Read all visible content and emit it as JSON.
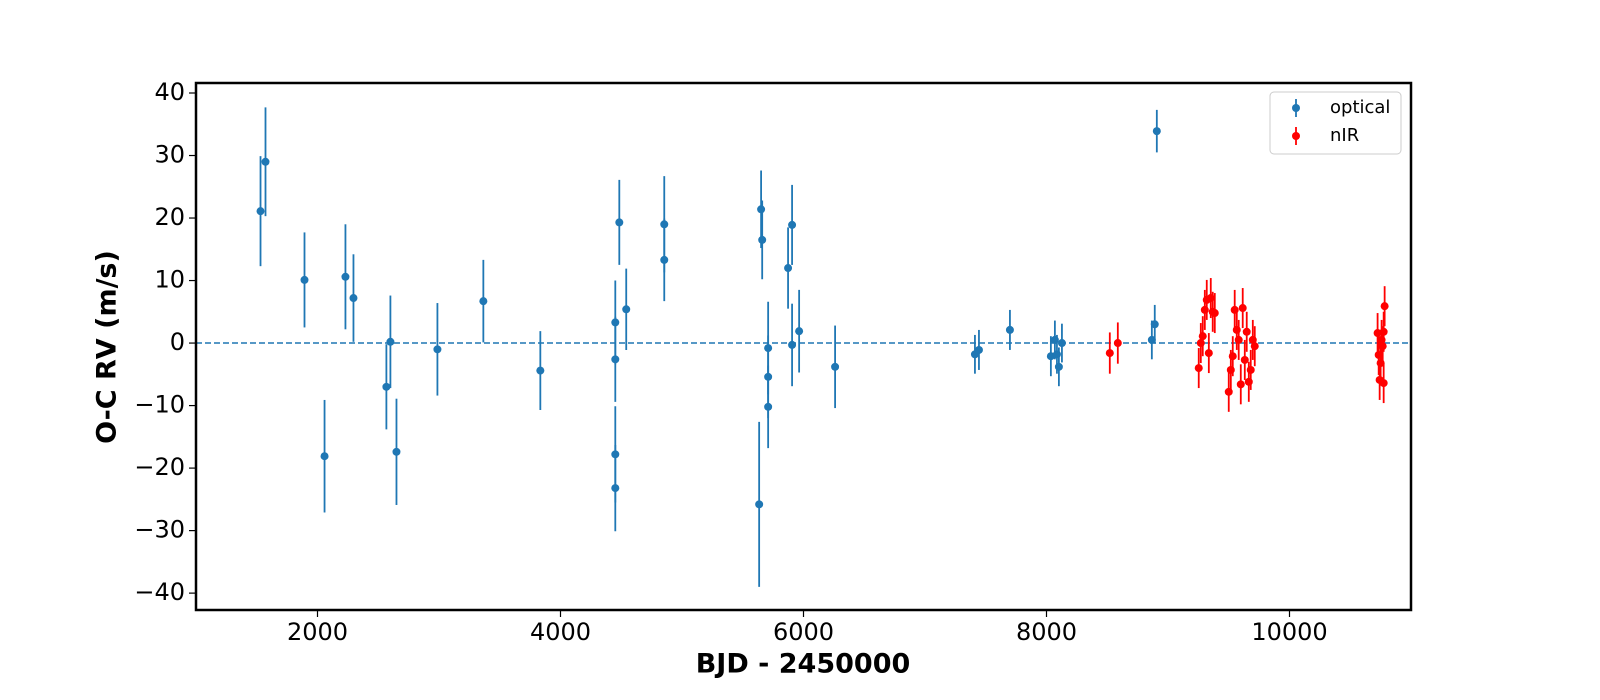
{
  "chart_data": {
    "type": "errorbar-scatter",
    "x_label": "BJD - 2450000",
    "y_label": "O-C RV (m/s)",
    "xlim": [
      1000,
      11000
    ],
    "ylim": [
      -42.7,
      41.6
    ],
    "xticks": [
      2000,
      4000,
      6000,
      8000,
      10000
    ],
    "yticks": [
      {
        "value": -40,
        "label": "−40"
      },
      {
        "value": -30,
        "label": "−30"
      },
      {
        "value": -20,
        "label": "−20"
      },
      {
        "value": -10,
        "label": "−10"
      },
      0,
      10,
      20,
      30,
      40
    ],
    "reference_line": {
      "value": 0,
      "color": "#1f77b4",
      "dashed": true
    },
    "legend": "upper right",
    "series": [
      {
        "name": "optical",
        "color": "#1f77b4",
        "x": [
          1531,
          1572,
          1893,
          2058,
          2230,
          2296,
          2567,
          2600,
          2650,
          2987,
          3365,
          3834,
          4451,
          4451,
          4451,
          4451,
          4484,
          4541,
          4854,
          4854,
          5635,
          5651,
          5660,
          5709,
          5709,
          5709,
          5873,
          5906,
          5906,
          5964,
          6260,
          7411,
          7444,
          7699,
          8036,
          8069,
          8086,
          8102,
          8127,
          8867,
          8891,
          8908
        ],
        "values": [
          21.1,
          29,
          10.1,
          -18.1,
          10.6,
          7.2,
          -7.0,
          0.2,
          -17.4,
          -1.0,
          6.7,
          -4.4,
          3.3,
          -2.6,
          -17.8,
          -23.2,
          19.3,
          5.4,
          19.0,
          13.3,
          -25.8,
          21.4,
          16.5,
          -0.8,
          -5.4,
          -10.2,
          12.0,
          18.9,
          -0.3,
          1.9,
          -3.8,
          -1.8,
          -1.1,
          2.1,
          -2.1,
          0.5,
          -1.8,
          -3.8,
          0,
          0.5,
          3.0,
          33.9
        ],
        "errors": [
          8.8,
          8.7,
          7.6,
          9,
          8.4,
          7,
          6.8,
          7.4,
          8.5,
          7.4,
          6.6,
          6.3,
          6.7,
          6.8,
          7.7,
          6.9,
          6.8,
          6.5,
          7.7,
          6.6,
          13.2,
          6.2,
          6.3,
          7.4,
          6.6,
          6.6,
          6.5,
          6.4,
          6.6,
          6.6,
          6.6,
          3.1,
          3.2,
          3.2,
          3.2,
          3.1,
          3.1,
          3.1,
          3.1,
          3.1,
          3.1,
          3.4
        ]
      },
      {
        "name": "nIR",
        "color": "#ff0000",
        "x": [
          8521,
          8587,
          9253,
          9270,
          9286,
          9303,
          9319,
          9336,
          9352,
          9368,
          9385,
          9500,
          9517,
          9533,
          9549,
          9566,
          9582,
          9599,
          9615,
          9632,
          9648,
          9665,
          9681,
          9698,
          9714,
          10725,
          10734,
          10742,
          10750,
          10758,
          10767,
          10775,
          10783,
          10775
        ],
        "values": [
          -1.6,
          0,
          -4.0,
          0,
          1.1,
          5.3,
          6.9,
          -1.6,
          7.2,
          5,
          4.8,
          -7.8,
          -4.3,
          -2.1,
          5.3,
          2.1,
          0.5,
          -6.6,
          5.6,
          -2.7,
          1.8,
          -6.2,
          -4.3,
          0.5,
          -0.5,
          1.6,
          -1.9,
          -5.9,
          -3.2,
          0.5,
          -0.5,
          -6.4,
          5.9,
          1.8
        ],
        "errors": [
          3.3,
          3.3,
          3.2,
          3.2,
          3.2,
          3.2,
          3.2,
          3.2,
          3.2,
          3.2,
          3.2,
          3.2,
          3.2,
          3.2,
          3.2,
          3.2,
          3.2,
          3.2,
          3.2,
          3.2,
          3.2,
          3.2,
          3.2,
          3.2,
          3.2,
          3.2,
          3.2,
          3.2,
          3.2,
          3.2,
          3.2,
          3.2,
          3.2,
          3.2
        ]
      }
    ]
  }
}
